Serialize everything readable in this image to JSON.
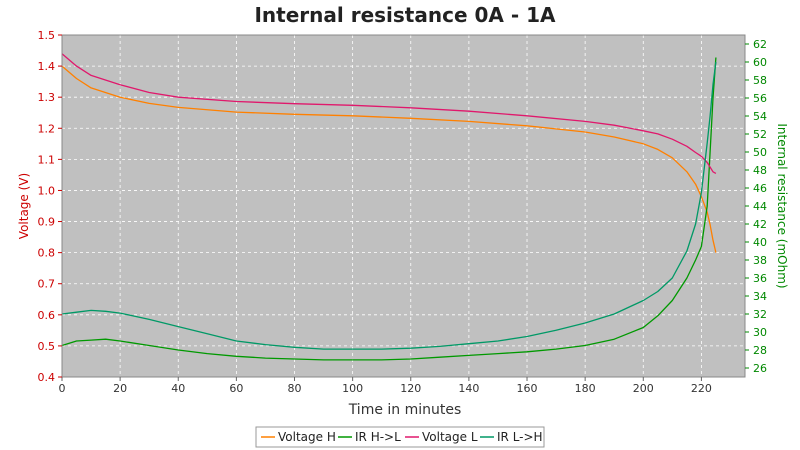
{
  "chart_data": {
    "type": "line",
    "title": "Internal resistance  0A - 1A",
    "xlabel": "Time in minutes",
    "ylabel_left": "Voltage (V)",
    "ylabel_right": "Internal resistance (mOhm)",
    "xlim": [
      0,
      235
    ],
    "ylim_left": [
      0.4,
      1.5
    ],
    "ylim_right": [
      25,
      63
    ],
    "x_ticks": [
      0,
      20,
      40,
      60,
      80,
      100,
      120,
      140,
      160,
      180,
      200,
      220
    ],
    "y_left_ticks": [
      0.4,
      0.5,
      0.6,
      0.7,
      0.8,
      0.9,
      1.0,
      1.1,
      1.2,
      1.3,
      1.4,
      1.5
    ],
    "y_right_ticks": [
      26,
      28,
      30,
      32,
      34,
      36,
      38,
      40,
      42,
      44,
      46,
      48,
      50,
      52,
      54,
      56,
      58,
      60,
      62
    ],
    "grid": true,
    "legend_position": "bottom",
    "colors": {
      "voltage_h": "#ff8000",
      "ir_h_l": "#009900",
      "voltage_l": "#e0186c",
      "ir_l_h": "#009966",
      "plot_bg": "#c0c0c0",
      "left_axis": "#cc0000",
      "right_axis": "#008800"
    },
    "series": [
      {
        "name": "Voltage H",
        "axis": "left",
        "color": "#ff8000",
        "x": [
          0,
          5,
          10,
          20,
          30,
          40,
          60,
          80,
          100,
          120,
          140,
          160,
          180,
          190,
          200,
          205,
          210,
          215,
          218,
          220,
          222,
          223,
          224,
          225
        ],
        "y": [
          1.4,
          1.36,
          1.33,
          1.3,
          1.28,
          1.267,
          1.252,
          1.245,
          1.24,
          1.232,
          1.222,
          1.208,
          1.188,
          1.172,
          1.15,
          1.132,
          1.105,
          1.06,
          1.02,
          0.98,
          0.93,
          0.89,
          0.84,
          0.8
        ]
      },
      {
        "name": "IR H->L",
        "axis": "right",
        "color": "#009900",
        "x": [
          0,
          5,
          10,
          15,
          20,
          30,
          40,
          50,
          60,
          70,
          80,
          90,
          100,
          110,
          120,
          130,
          140,
          150,
          160,
          170,
          180,
          190,
          200,
          205,
          210,
          215,
          218,
          220,
          222,
          223,
          224,
          225
        ],
        "y": [
          28.5,
          29.0,
          29.1,
          29.2,
          29.0,
          28.5,
          28.0,
          27.6,
          27.3,
          27.1,
          27.0,
          26.9,
          26.9,
          26.9,
          27.0,
          27.2,
          27.4,
          27.6,
          27.8,
          28.1,
          28.5,
          29.2,
          30.5,
          31.8,
          33.5,
          36.0,
          38.0,
          39.5,
          44.0,
          50.0,
          56.0,
          60.5
        ]
      },
      {
        "name": "Voltage L",
        "axis": "left",
        "color": "#e0186c",
        "x": [
          0,
          5,
          10,
          20,
          30,
          40,
          60,
          80,
          100,
          120,
          140,
          160,
          180,
          190,
          200,
          205,
          210,
          215,
          218,
          220,
          222,
          223,
          224,
          225
        ],
        "y": [
          1.44,
          1.4,
          1.37,
          1.34,
          1.315,
          1.3,
          1.286,
          1.279,
          1.274,
          1.266,
          1.255,
          1.24,
          1.222,
          1.21,
          1.192,
          1.182,
          1.165,
          1.142,
          1.122,
          1.11,
          1.09,
          1.075,
          1.06,
          1.055
        ]
      },
      {
        "name": "IR L->H",
        "axis": "right",
        "color": "#009966",
        "x": [
          0,
          5,
          10,
          15,
          20,
          30,
          40,
          50,
          60,
          70,
          80,
          90,
          100,
          110,
          120,
          130,
          140,
          150,
          160,
          170,
          180,
          190,
          200,
          205,
          210,
          215,
          218,
          220,
          222,
          223,
          224,
          225
        ],
        "y": [
          32.0,
          32.2,
          32.4,
          32.3,
          32.1,
          31.4,
          30.6,
          29.8,
          29.0,
          28.6,
          28.3,
          28.1,
          28.1,
          28.1,
          28.2,
          28.4,
          28.7,
          29.0,
          29.5,
          30.2,
          31.0,
          32.0,
          33.5,
          34.5,
          36.0,
          39.0,
          42.0,
          45.5,
          51.0,
          54.0,
          57.5,
          60.0
        ]
      }
    ]
  }
}
